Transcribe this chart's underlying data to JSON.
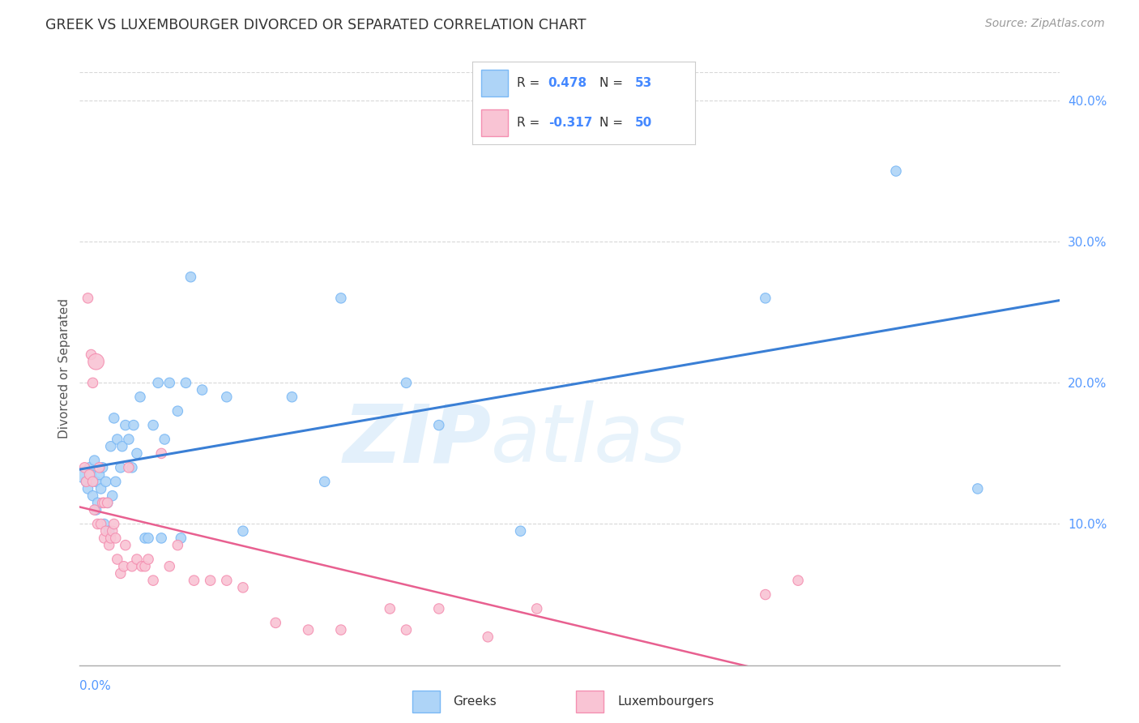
{
  "title": "GREEK VS LUXEMBOURGER DIVORCED OR SEPARATED CORRELATION CHART",
  "source": "Source: ZipAtlas.com",
  "ylabel": "Divorced or Separated",
  "ylabel_right_ticks": [
    "10.0%",
    "20.0%",
    "30.0%",
    "40.0%"
  ],
  "ylabel_right_vals": [
    0.1,
    0.2,
    0.3,
    0.4
  ],
  "blue_color": "#7ab8f5",
  "pink_color": "#f48fb1",
  "blue_fill": "#aed4f7",
  "pink_fill": "#f9c4d4",
  "blue_line_color": "#3a7fd5",
  "pink_line_color": "#e86090",
  "background_color": "#ffffff",
  "grid_color": "#d8d8d8",
  "xlim": [
    0.0,
    0.6
  ],
  "ylim": [
    0.0,
    0.42
  ],
  "greeks_x": [
    0.002,
    0.004,
    0.005,
    0.006,
    0.007,
    0.008,
    0.009,
    0.01,
    0.01,
    0.011,
    0.012,
    0.013,
    0.014,
    0.015,
    0.016,
    0.017,
    0.018,
    0.019,
    0.02,
    0.021,
    0.022,
    0.023,
    0.025,
    0.026,
    0.028,
    0.03,
    0.032,
    0.033,
    0.035,
    0.037,
    0.04,
    0.042,
    0.045,
    0.048,
    0.05,
    0.052,
    0.055,
    0.06,
    0.062,
    0.065,
    0.068,
    0.075,
    0.09,
    0.1,
    0.13,
    0.15,
    0.16,
    0.2,
    0.22,
    0.27,
    0.42,
    0.5,
    0.55
  ],
  "greeks_y": [
    0.135,
    0.13,
    0.125,
    0.14,
    0.135,
    0.12,
    0.145,
    0.11,
    0.13,
    0.115,
    0.135,
    0.125,
    0.14,
    0.1,
    0.13,
    0.115,
    0.095,
    0.155,
    0.12,
    0.175,
    0.13,
    0.16,
    0.14,
    0.155,
    0.17,
    0.16,
    0.14,
    0.17,
    0.15,
    0.19,
    0.09,
    0.09,
    0.17,
    0.2,
    0.09,
    0.16,
    0.2,
    0.18,
    0.09,
    0.2,
    0.275,
    0.195,
    0.19,
    0.095,
    0.19,
    0.13,
    0.26,
    0.2,
    0.17,
    0.095,
    0.26,
    0.35,
    0.125
  ],
  "greeks_size": [
    200,
    80,
    80,
    80,
    80,
    80,
    80,
    80,
    80,
    80,
    80,
    80,
    80,
    80,
    80,
    80,
    80,
    80,
    80,
    80,
    80,
    80,
    80,
    80,
    80,
    80,
    80,
    80,
    80,
    80,
    80,
    80,
    80,
    80,
    80,
    80,
    80,
    80,
    80,
    80,
    80,
    80,
    80,
    80,
    80,
    80,
    80,
    80,
    80,
    80,
    80,
    80,
    80
  ],
  "luxem_x": [
    0.003,
    0.004,
    0.005,
    0.006,
    0.007,
    0.008,
    0.008,
    0.009,
    0.01,
    0.011,
    0.012,
    0.013,
    0.014,
    0.015,
    0.015,
    0.016,
    0.017,
    0.018,
    0.019,
    0.02,
    0.021,
    0.022,
    0.023,
    0.025,
    0.027,
    0.028,
    0.03,
    0.032,
    0.035,
    0.038,
    0.04,
    0.042,
    0.045,
    0.05,
    0.055,
    0.06,
    0.07,
    0.08,
    0.09,
    0.1,
    0.12,
    0.14,
    0.16,
    0.19,
    0.2,
    0.22,
    0.25,
    0.28,
    0.42,
    0.44
  ],
  "luxem_y": [
    0.14,
    0.13,
    0.26,
    0.135,
    0.22,
    0.13,
    0.2,
    0.11,
    0.215,
    0.1,
    0.14,
    0.1,
    0.115,
    0.09,
    0.115,
    0.095,
    0.115,
    0.085,
    0.09,
    0.095,
    0.1,
    0.09,
    0.075,
    0.065,
    0.07,
    0.085,
    0.14,
    0.07,
    0.075,
    0.07,
    0.07,
    0.075,
    0.06,
    0.15,
    0.07,
    0.085,
    0.06,
    0.06,
    0.06,
    0.055,
    0.03,
    0.025,
    0.025,
    0.04,
    0.025,
    0.04,
    0.02,
    0.04,
    0.05,
    0.06
  ],
  "luxem_size": [
    80,
    80,
    80,
    80,
    80,
    80,
    80,
    80,
    200,
    80,
    80,
    80,
    80,
    80,
    80,
    80,
    80,
    80,
    80,
    80,
    80,
    80,
    80,
    80,
    80,
    80,
    80,
    80,
    80,
    80,
    80,
    80,
    80,
    80,
    80,
    80,
    80,
    80,
    80,
    80,
    80,
    80,
    80,
    80,
    80,
    80,
    80,
    80,
    80,
    80
  ]
}
